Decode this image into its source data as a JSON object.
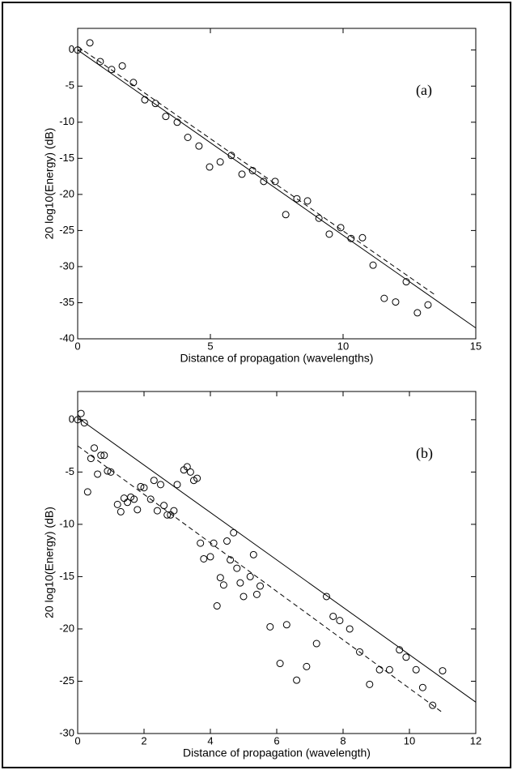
{
  "chart_data": [
    {
      "type": "scatter",
      "annotation": "(a)",
      "xlabel": "Distance of propagation (wavelengths)",
      "ylabel": "20 log10(Energy) (dB)",
      "xlim": [
        0,
        15
      ],
      "ylim": [
        -40,
        3
      ],
      "xticks": [
        0,
        5,
        10,
        15
      ],
      "yticks": [
        0,
        -5,
        -10,
        -15,
        -20,
        -25,
        -30,
        -35,
        -40
      ],
      "series": [
        {
          "style": "circle",
          "color": "#000000",
          "x": [
            0,
            0.46,
            0.85,
            1.28,
            1.68,
            2.1,
            2.53,
            2.93,
            3.32,
            3.75,
            4.15,
            4.57,
            4.97,
            5.37,
            5.79,
            6.19,
            6.59,
            7.01,
            7.44,
            7.84,
            8.26,
            8.66,
            9.09,
            9.48,
            9.91,
            10.3,
            10.73,
            11.13,
            11.55,
            11.98,
            12.38,
            12.8,
            13.2
          ],
          "values": [
            0,
            1.0,
            -1.6,
            -2.7,
            -2.2,
            -4.5,
            -6.9,
            -7.4,
            -9.2,
            -10.0,
            -12.1,
            -13.3,
            -16.2,
            -15.5,
            -14.6,
            -17.2,
            -16.7,
            -18.2,
            -18.2,
            -22.8,
            -20.6,
            -20.9,
            -23.3,
            -25.5,
            -24.6,
            -26.1,
            -26.0,
            -29.8,
            -34.4,
            -34.9,
            -32.1,
            -36.4,
            -35.3
          ]
        },
        {
          "style": "solid",
          "color": "#000000",
          "x": [
            0,
            15
          ],
          "values": [
            0,
            -38.5
          ]
        },
        {
          "style": "dashed",
          "color": "#000000",
          "x": [
            0,
            13.5
          ],
          "values": [
            0.5,
            -34
          ]
        }
      ]
    },
    {
      "type": "scatter",
      "annotation": "(b)",
      "xlabel": "Distance of propagation (wavelength)",
      "ylabel": "20 log10(Energy) (dB)",
      "xlim": [
        0,
        12
      ],
      "ylim": [
        -30,
        2.7
      ],
      "xticks": [
        0,
        2,
        4,
        6,
        8,
        10,
        12
      ],
      "yticks": [
        0,
        -5,
        -10,
        -15,
        -20,
        -25,
        -30
      ],
      "series": [
        {
          "style": "circle",
          "color": "#000000",
          "x": [
            0,
            0.1,
            0.2,
            0.3,
            0.4,
            0.5,
            0.6,
            0.7,
            0.8,
            0.9,
            1.0,
            1.2,
            1.3,
            1.4,
            1.5,
            1.6,
            1.7,
            1.8,
            1.9,
            2.0,
            2.2,
            2.3,
            2.4,
            2.5,
            2.6,
            2.7,
            2.8,
            2.9,
            3.0,
            3.2,
            3.3,
            3.4,
            3.5,
            3.6,
            3.7,
            3.8,
            4.0,
            4.1,
            4.2,
            4.3,
            4.4,
            4.5,
            4.6,
            4.7,
            4.8,
            4.9,
            5.0,
            5.2,
            5.3,
            5.4,
            5.5,
            5.8,
            6.1,
            6.3,
            6.6,
            6.9,
            7.2,
            7.5,
            7.7,
            7.9,
            8.2,
            8.5,
            8.8,
            9.1,
            9.4,
            9.7,
            9.9,
            10.2,
            10.4,
            10.7,
            11.0
          ],
          "values": [
            0,
            0.6,
            -0.3,
            -6.9,
            -3.7,
            -2.7,
            -5.2,
            -3.4,
            -3.4,
            -4.9,
            -5.0,
            -8.1,
            -8.8,
            -7.5,
            -7.9,
            -7.4,
            -7.6,
            -8.6,
            -6.4,
            -6.5,
            -7.6,
            -5.8,
            -8.7,
            -6.2,
            -8.2,
            -9.1,
            -9.1,
            -8.7,
            -6.2,
            -4.8,
            -4.5,
            -5.0,
            -5.8,
            -5.6,
            -11.8,
            -13.3,
            -13.1,
            -11.8,
            -17.8,
            -15.1,
            -15.8,
            -11.6,
            -13.4,
            -10.8,
            -14.2,
            -15.6,
            -16.9,
            -15.0,
            -12.9,
            -16.7,
            -15.9,
            -19.8,
            -23.3,
            -19.6,
            -24.9,
            -23.6,
            -21.4,
            -16.9,
            -18.8,
            -19.2,
            -20.0,
            -22.2,
            -25.3,
            -23.9,
            -23.9,
            -22.0,
            -22.7,
            -23.9,
            -25.6,
            -27.3,
            -24.0
          ]
        },
        {
          "style": "solid",
          "color": "#000000",
          "x": [
            0,
            12
          ],
          "values": [
            0.2,
            -27
          ]
        },
        {
          "style": "dashed",
          "color": "#000000",
          "x": [
            0,
            11
          ],
          "values": [
            -2.5,
            -28
          ]
        }
      ]
    }
  ]
}
